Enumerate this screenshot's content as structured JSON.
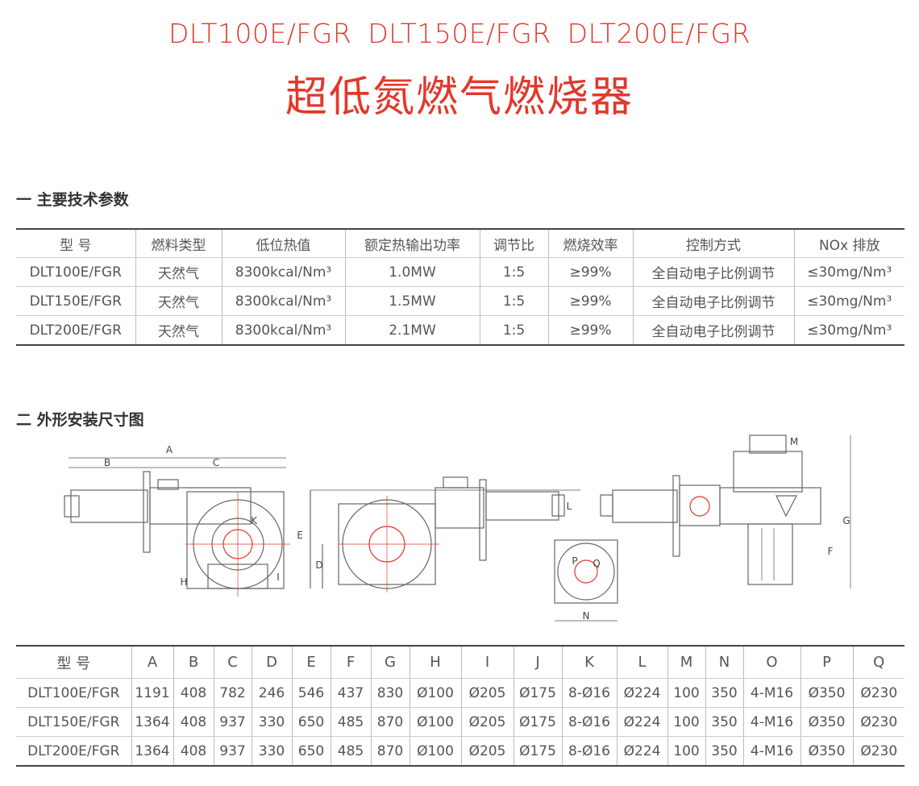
{
  "header": {
    "models": [
      "DLT100E/FGR",
      "DLT150E/FGR",
      "DLT200E/FGR"
    ],
    "title": "超低氮燃气燃烧器"
  },
  "section1": {
    "heading": "一 主要技术参数",
    "table": {
      "columns": [
        "型 号",
        "燃料类型",
        "低位热值",
        "额定热输出功率",
        "调节比",
        "燃烧效率",
        "控制方式",
        "NOx 排放"
      ],
      "rows": [
        [
          "DLT100E/FGR",
          "天然气",
          "8300kcal/Nm³",
          "1.0MW",
          "1:5",
          "≥99%",
          "全自动电子比例调节",
          "≤30mg/Nm³"
        ],
        [
          "DLT150E/FGR",
          "天然气",
          "8300kcal/Nm³",
          "1.5MW",
          "1:5",
          "≥99%",
          "全自动电子比例调节",
          "≤30mg/Nm³"
        ],
        [
          "DLT200E/FGR",
          "天然气",
          "8300kcal/Nm³",
          "2.1MW",
          "1:5",
          "≥99%",
          "全自动电子比例调节",
          "≤30mg/Nm³"
        ]
      ]
    }
  },
  "section2": {
    "heading": "二 外形安装尺寸图",
    "drawing_labels": [
      "A",
      "B",
      "C",
      "K",
      "H",
      "I",
      "L",
      "E",
      "D",
      "M",
      "G",
      "F",
      "N",
      "P",
      "Q"
    ],
    "table": {
      "columns": [
        "型 号",
        "A",
        "B",
        "C",
        "D",
        "E",
        "F",
        "G",
        "H",
        "I",
        "J",
        "K",
        "L",
        "M",
        "N",
        "O",
        "P",
        "Q"
      ],
      "rows": [
        [
          "DLT100E/FGR",
          "1191",
          "408",
          "782",
          "246",
          "546",
          "437",
          "830",
          "Ø100",
          "Ø205",
          "Ø175",
          "8-Ø16",
          "Ø224",
          "100",
          "350",
          "4-M16",
          "Ø350",
          "Ø230"
        ],
        [
          "DLT150E/FGR",
          "1364",
          "408",
          "937",
          "330",
          "650",
          "485",
          "870",
          "Ø100",
          "Ø205",
          "Ø175",
          "8-Ø16",
          "Ø224",
          "100",
          "350",
          "4-M16",
          "Ø350",
          "Ø230"
        ],
        [
          "DLT200E/FGR",
          "1364",
          "408",
          "937",
          "330",
          "650",
          "485",
          "870",
          "Ø100",
          "Ø205",
          "Ø175",
          "8-Ø16",
          "Ø224",
          "100",
          "350",
          "4-M16",
          "Ø350",
          "Ø230"
        ]
      ]
    }
  }
}
